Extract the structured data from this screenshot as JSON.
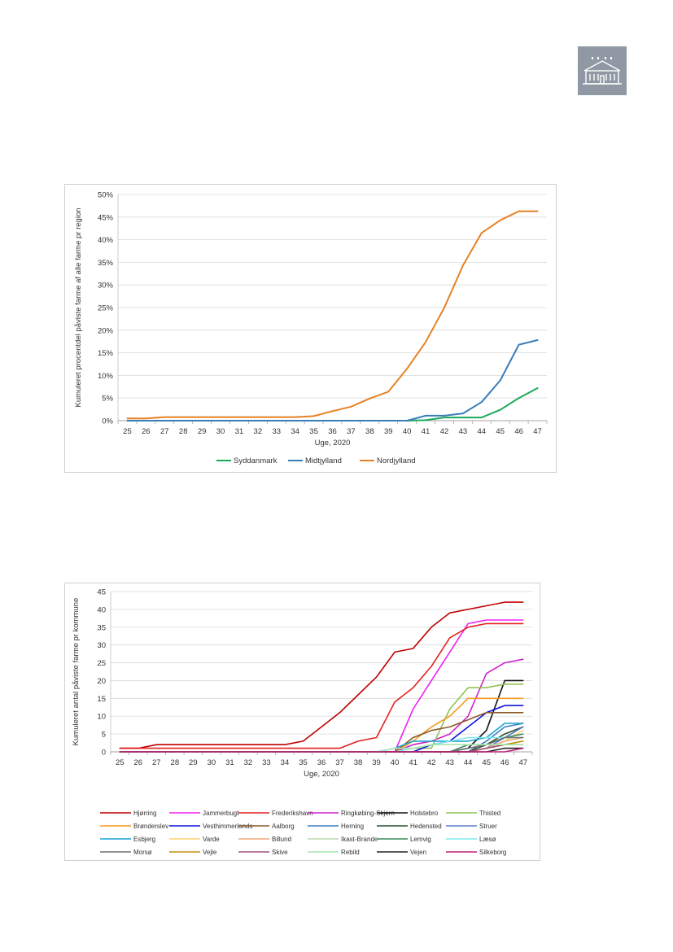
{
  "charts": [
    {
      "type": "line",
      "xlabel": "Uge, 2020",
      "ylabel": "Kumuleret procentdel påviste farme  af alle farme pr region",
      "categories": [
        "25",
        "26",
        "27",
        "28",
        "29",
        "30",
        "31",
        "32",
        "33",
        "34",
        "35",
        "36",
        "37",
        "38",
        "39",
        "40",
        "41",
        "42",
        "43",
        "44",
        "45",
        "46",
        "47"
      ],
      "y_ticks": [
        "0%",
        "5%",
        "10%",
        "15%",
        "20%",
        "25%",
        "30%",
        "35%",
        "40%",
        "45%",
        "50%"
      ],
      "ylim": [
        0,
        50
      ],
      "grid": true,
      "legend_position": "bottom",
      "series": [
        {
          "name": "Syddanmark",
          "color": "#1aaa5b",
          "values": [
            0,
            0,
            0,
            0,
            0,
            0,
            0,
            0,
            0,
            0,
            0,
            0,
            0,
            0,
            0,
            0,
            0.1,
            0.7,
            0.7,
            0.7,
            2.4,
            5.0,
            7.2
          ]
        },
        {
          "name": "Midtjylland",
          "color": "#3a7db8",
          "values": [
            0,
            0,
            0,
            0,
            0,
            0,
            0,
            0,
            0,
            0,
            0,
            0,
            0,
            0,
            0,
            0,
            1.1,
            1.1,
            1.6,
            4.1,
            8.9,
            16.8,
            17.8
          ]
        },
        {
          "name": "Nordjylland",
          "color": "#e58225",
          "values": [
            0.5,
            0.5,
            0.8,
            0.8,
            0.8,
            0.8,
            0.8,
            0.8,
            0.8,
            0.8,
            1.0,
            2.1,
            3.1,
            4.9,
            6.4,
            11.5,
            17.4,
            25.0,
            34.3,
            41.5,
            44.3,
            46.3,
            46.3
          ]
        }
      ]
    },
    {
      "type": "line",
      "xlabel": "Uge, 2020",
      "ylabel": "Kumuleret antal påviste farme pr kommune",
      "categories": [
        "25",
        "26",
        "27",
        "28",
        "29",
        "30",
        "31",
        "32",
        "33",
        "34",
        "35",
        "36",
        "37",
        "38",
        "39",
        "40",
        "41",
        "42",
        "43",
        "44",
        "45",
        "46",
        "47"
      ],
      "y_ticks": [
        "0",
        "5",
        "10",
        "15",
        "20",
        "25",
        "30",
        "35",
        "40",
        "45"
      ],
      "ylim": [
        0,
        45
      ],
      "grid": true,
      "legend_position": "bottom",
      "series": [
        {
          "name": "Hjørring",
          "color": "#c00000",
          "values": [
            1,
            1,
            2,
            2,
            2,
            2,
            2,
            2,
            2,
            2,
            3,
            7,
            11,
            16,
            21,
            28,
            29,
            35,
            39,
            40,
            41,
            42,
            42
          ]
        },
        {
          "name": "Jammerbugt",
          "color": "#f020f0",
          "values": [
            0,
            0,
            0,
            0,
            0,
            0,
            0,
            0,
            0,
            0,
            0,
            0,
            0,
            0,
            0,
            0,
            12,
            20,
            28,
            36,
            37,
            37,
            37
          ]
        },
        {
          "name": "Frederikshavn",
          "color": "#e62020",
          "values": [
            1,
            1,
            1,
            1,
            1,
            1,
            1,
            1,
            1,
            1,
            1,
            1,
            1,
            3,
            4,
            14,
            18,
            24,
            32,
            35,
            36,
            36,
            36
          ]
        },
        {
          "name": "Ringkøbing-Skjern",
          "color": "#cc22cc",
          "values": [
            0,
            0,
            0,
            0,
            0,
            0,
            0,
            0,
            0,
            0,
            0,
            0,
            0,
            0,
            0,
            0,
            2,
            3,
            5,
            10,
            22,
            25,
            26
          ]
        },
        {
          "name": "Holstebro",
          "color": "#111111",
          "values": [
            0,
            0,
            0,
            0,
            0,
            0,
            0,
            0,
            0,
            0,
            0,
            0,
            0,
            0,
            0,
            0,
            0,
            0,
            0,
            1,
            6,
            20,
            20
          ]
        },
        {
          "name": "Thisted",
          "color": "#92c353",
          "values": [
            0,
            0,
            0,
            0,
            0,
            0,
            0,
            0,
            0,
            0,
            0,
            0,
            0,
            0,
            0,
            0,
            1,
            1,
            12,
            18,
            18,
            19,
            19
          ]
        },
        {
          "name": "Brønderslev",
          "color": "#f59a1c",
          "values": [
            0,
            0,
            0,
            0,
            0,
            0,
            0,
            0,
            0,
            0,
            0,
            0,
            0,
            0,
            0,
            0,
            3,
            7,
            10,
            15,
            15,
            15,
            15
          ]
        },
        {
          "name": "Vesthimmerlands",
          "color": "#1010e0",
          "values": [
            0,
            0,
            0,
            0,
            0,
            0,
            0,
            0,
            0,
            0,
            0,
            0,
            0,
            0,
            0,
            0,
            0,
            2,
            3,
            7,
            11,
            13,
            13
          ]
        },
        {
          "name": "Aalborg",
          "color": "#8b5a2b",
          "values": [
            0,
            0,
            0,
            0,
            0,
            0,
            0,
            0,
            0,
            0,
            0,
            0,
            0,
            0,
            0,
            0,
            4,
            6,
            7,
            9,
            11,
            11,
            11
          ]
        },
        {
          "name": "Herning",
          "color": "#3d7fc1",
          "values": [
            0,
            0,
            0,
            0,
            0,
            0,
            0,
            0,
            0,
            0,
            0,
            0,
            0,
            0,
            0,
            0,
            0,
            0,
            0,
            0,
            3,
            7,
            8
          ]
        },
        {
          "name": "Hedensted",
          "color": "#2f4f2f",
          "values": [
            0,
            0,
            0,
            0,
            0,
            0,
            0,
            0,
            0,
            0,
            0,
            0,
            0,
            0,
            0,
            0,
            0,
            0,
            0,
            0,
            2,
            5,
            7
          ]
        },
        {
          "name": "Struer",
          "color": "#5b7fc7",
          "values": [
            0,
            0,
            0,
            0,
            0,
            0,
            0,
            0,
            0,
            0,
            0,
            0,
            0,
            0,
            0,
            0,
            0,
            0,
            0,
            0,
            1,
            4,
            7
          ]
        },
        {
          "name": "Esbjerg",
          "color": "#1ca3d4",
          "values": [
            0,
            0,
            0,
            0,
            0,
            0,
            0,
            0,
            0,
            0,
            0,
            0,
            0,
            0,
            0,
            1,
            3,
            3,
            3,
            3,
            4,
            8,
            8
          ]
        },
        {
          "name": "Varde",
          "color": "#ffd070",
          "values": [
            0,
            0,
            0,
            0,
            0,
            0,
            0,
            0,
            0,
            0,
            0,
            0,
            0,
            0,
            0,
            0,
            0,
            0,
            0,
            0,
            1,
            3,
            6
          ]
        },
        {
          "name": "Billund",
          "color": "#f0a878",
          "values": [
            0,
            0,
            0,
            0,
            0,
            0,
            0,
            0,
            0,
            0,
            0,
            0,
            0,
            0,
            0,
            0,
            0,
            0,
            0,
            0,
            1,
            3,
            4
          ]
        },
        {
          "name": "Ikast-Brande",
          "color": "#b8d8b0",
          "values": [
            0,
            0,
            0,
            0,
            0,
            0,
            0,
            0,
            0,
            0,
            0,
            0,
            0,
            0,
            0,
            0,
            0,
            0,
            0,
            0,
            1,
            2,
            3
          ]
        },
        {
          "name": "Lemvig",
          "color": "#3a8a5a",
          "values": [
            0,
            0,
            0,
            0,
            0,
            0,
            0,
            0,
            0,
            0,
            0,
            0,
            0,
            0,
            0,
            0,
            0,
            0,
            0,
            2,
            2,
            4,
            5
          ]
        },
        {
          "name": "Læsø",
          "color": "#7fe8f0",
          "values": [
            0,
            0,
            0,
            0,
            0,
            0,
            0,
            0,
            0,
            0,
            0,
            0,
            0,
            0,
            0,
            0,
            1,
            2,
            3,
            4,
            4,
            4,
            4
          ]
        },
        {
          "name": "Morsø",
          "color": "#707070",
          "values": [
            0,
            0,
            0,
            0,
            0,
            0,
            0,
            0,
            0,
            0,
            0,
            0,
            0,
            0,
            0,
            0,
            0,
            0,
            0,
            1,
            2,
            4,
            4
          ]
        },
        {
          "name": "Vejle",
          "color": "#c0900a",
          "values": [
            0,
            0,
            0,
            0,
            0,
            0,
            0,
            0,
            0,
            0,
            0,
            0,
            0,
            0,
            0,
            0,
            0,
            0,
            0,
            0,
            1,
            2,
            3
          ]
        },
        {
          "name": "Skive",
          "color": "#a0507a",
          "values": [
            0,
            0,
            0,
            0,
            0,
            0,
            0,
            0,
            0,
            0,
            0,
            0,
            0,
            0,
            0,
            0,
            0,
            0,
            0,
            0,
            1,
            2,
            2
          ]
        },
        {
          "name": "Rebild",
          "color": "#a8e6b0",
          "values": [
            0,
            0,
            0,
            0,
            0,
            0,
            0,
            0,
            0,
            0,
            0,
            0,
            0,
            0,
            0,
            1,
            1,
            2,
            2,
            2,
            2,
            2,
            2
          ]
        },
        {
          "name": "Vejen",
          "color": "#222222",
          "values": [
            0,
            0,
            0,
            0,
            0,
            0,
            0,
            0,
            0,
            0,
            0,
            0,
            0,
            0,
            0,
            0,
            0,
            0,
            0,
            0,
            0,
            1,
            1
          ]
        },
        {
          "name": "Silkeborg",
          "color": "#c0207a",
          "values": [
            0,
            0,
            0,
            0,
            0,
            0,
            0,
            0,
            0,
            0,
            0,
            0,
            0,
            0,
            0,
            0,
            0,
            0,
            0,
            0,
            0,
            0,
            1
          ]
        }
      ]
    }
  ]
}
